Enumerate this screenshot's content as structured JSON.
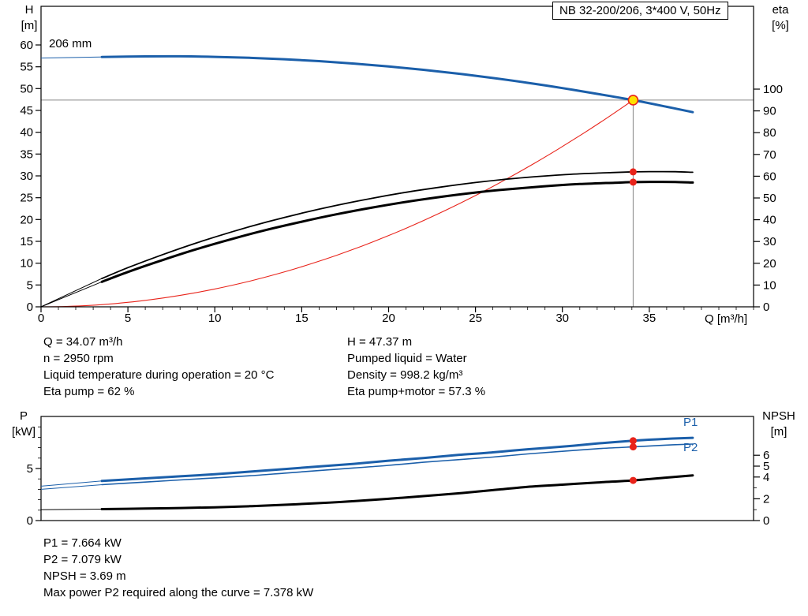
{
  "header": {
    "title_box": "NB 32-200/206, 3*400 V, 50Hz"
  },
  "top_chart": {
    "left_axis_title": "H",
    "left_axis_unit": "[m]",
    "right_axis_title": "eta",
    "right_axis_unit": "[%]",
    "x_axis_label": "Q [m³/h]",
    "impeller_diameter_label": "206 mm"
  },
  "bottom_chart": {
    "left_axis_title": "P",
    "left_axis_unit": "[kW]",
    "right_axis_title": "NPSH",
    "right_axis_unit": "[m]",
    "p1_label": "P1",
    "p2_label": "P2"
  },
  "operating_info": {
    "left_column": [
      "Q = 34.07 m³/h",
      "n = 2950 rpm",
      "Liquid temperature during operation = 20 °C",
      "Eta pump = 62 %"
    ],
    "right_column": [
      "H = 47.37 m",
      "Pumped liquid = Water",
      "Density = 998.2 kg/m³",
      "Eta pump+motor = 57.3 %"
    ]
  },
  "result_info": [
    "P1 = 7.664 kW",
    "P2 = 7.079 kW",
    "NPSH = 3.69 m",
    "Max power P2 required along the curve = 7.378 kW"
  ],
  "colors": {
    "curve_blue": "#1b5faa",
    "curve_black": "#000000",
    "duty_red": "#e8231a",
    "marker_yellow": "#ffe100",
    "crosshair_gray": "#888888",
    "axis_black": "#000000"
  },
  "chart_data": [
    {
      "type": "line",
      "title": "NB 32-200/206, 3*400 V, 50Hz",
      "xlabel": "Q [m³/h]",
      "xlim": [
        0,
        41
      ],
      "x_major_ticks": [
        0,
        5,
        10,
        15,
        20,
        25,
        30,
        35
      ],
      "x_minor_step": 1,
      "y_left_label": "H [m]",
      "y_left_lim": [
        0,
        69
      ],
      "y_left_ticks": [
        0,
        5,
        10,
        15,
        20,
        25,
        30,
        35,
        40,
        45,
        50,
        55,
        60
      ],
      "y_right_label": "eta [%]",
      "y_right_lim": [
        0,
        100
      ],
      "y_right_ticks": [
        0,
        10,
        20,
        30,
        40,
        50,
        60,
        70,
        80,
        90,
        100
      ],
      "grid": false,
      "legend": "none",
      "series": [
        {
          "name": "H 206 mm",
          "scale": "H",
          "color": "#1b5faa",
          "width": 3,
          "lead_split": 1,
          "x": [
            0,
            3.5,
            6,
            8,
            10,
            12,
            14,
            16,
            18,
            20,
            22,
            24,
            26,
            28,
            30,
            32,
            34.07,
            36,
            37.5
          ],
          "y": [
            57.0,
            57.25,
            57.38,
            57.39,
            57.28,
            57.06,
            56.73,
            56.29,
            55.73,
            55.07,
            54.3,
            53.42,
            52.43,
            51.33,
            50.12,
            48.8,
            47.37,
            45.84,
            44.6
          ]
        },
        {
          "name": "Eta pump",
          "scale": "eta",
          "color": "#000000",
          "width": 1.8,
          "lead_split": 1,
          "x": [
            0,
            3.5,
            5,
            7,
            9,
            11,
            13,
            15,
            17,
            19,
            21,
            23,
            25,
            27,
            29,
            31,
            33,
            34.07,
            35,
            36.5,
            37.5
          ],
          "y": [
            0,
            13,
            18,
            24,
            29.5,
            34.5,
            39,
            43,
            46.6,
            49.8,
            52.6,
            55,
            57.1,
            58.8,
            60.1,
            61.1,
            61.7,
            62,
            62.1,
            62.05,
            61.8
          ]
        },
        {
          "name": "Eta pump+motor",
          "scale": "eta",
          "color": "#000000",
          "width": 3,
          "lead_split": 1,
          "x": [
            0,
            3.5,
            5,
            7,
            9,
            11,
            13,
            15,
            17,
            19,
            21,
            23,
            25,
            27,
            29,
            31,
            33,
            34.07,
            35,
            36.5,
            37.5
          ],
          "y": [
            0,
            11.5,
            16,
            21.5,
            26.6,
            31.2,
            35.4,
            39.1,
            42.5,
            45.5,
            48.2,
            50.5,
            52.5,
            54.1,
            55.4,
            56.4,
            57.0,
            57.3,
            57.4,
            57.35,
            57.1
          ]
        }
      ],
      "duty_point": {
        "Q": 34.07,
        "H": 47.37,
        "eta_pump": 62,
        "eta_pump_motor": 57.3
      }
    },
    {
      "type": "line",
      "xlabel": "Q [m³/h]",
      "xlim": [
        0,
        41
      ],
      "y_left_label": "P [kW]",
      "y_left_lim": [
        0,
        10
      ],
      "y_left_ticks": [
        0,
        5
      ],
      "y_left_minor_step": 1,
      "y_right_label": "NPSH [m]",
      "y_right_lim": [
        0,
        9.5
      ],
      "y_right_ticks": [
        0,
        2,
        4,
        5,
        6
      ],
      "y_right_minor_ticks": [
        1,
        3
      ],
      "grid": false,
      "series": [
        {
          "name": "P1",
          "scale": "P",
          "color": "#1b5faa",
          "width": 3,
          "lead_split": 1,
          "x": [
            0,
            3.5,
            6,
            8,
            10,
            12,
            14,
            16,
            18,
            20,
            22,
            24,
            26,
            28,
            30,
            32,
            34.07,
            36,
            37.5
          ],
          "y": [
            3.3,
            3.8,
            4.05,
            4.25,
            4.45,
            4.7,
            4.95,
            5.2,
            5.45,
            5.75,
            6.0,
            6.3,
            6.55,
            6.85,
            7.1,
            7.4,
            7.664,
            7.85,
            7.95
          ]
        },
        {
          "name": "P2",
          "scale": "P",
          "color": "#1b5faa",
          "width": 1.6,
          "lead_split": 1,
          "x": [
            0,
            3.5,
            6,
            8,
            10,
            12,
            14,
            16,
            18,
            20,
            22,
            24,
            26,
            28,
            30,
            32,
            34.07,
            36,
            37.5
          ],
          "y": [
            3.0,
            3.45,
            3.7,
            3.9,
            4.1,
            4.3,
            4.55,
            4.8,
            5.05,
            5.3,
            5.6,
            5.85,
            6.1,
            6.4,
            6.65,
            6.9,
            7.079,
            7.25,
            7.35
          ]
        },
        {
          "name": "NPSH",
          "scale": "NPSH",
          "color": "#000000",
          "width": 3,
          "lead_split": 1,
          "x": [
            0,
            3.5,
            6,
            8,
            10,
            12,
            14,
            16,
            18,
            20,
            22,
            24,
            26,
            28,
            30,
            32,
            34.07,
            36,
            37.5
          ],
          "y": [
            1.0,
            1.05,
            1.1,
            1.15,
            1.22,
            1.32,
            1.45,
            1.6,
            1.78,
            2.0,
            2.25,
            2.5,
            2.8,
            3.1,
            3.3,
            3.5,
            3.69,
            3.95,
            4.15
          ]
        }
      ],
      "duty_point": {
        "Q": 34.07,
        "P1": 7.664,
        "P2": 7.079,
        "NPSH": 3.69
      }
    }
  ]
}
